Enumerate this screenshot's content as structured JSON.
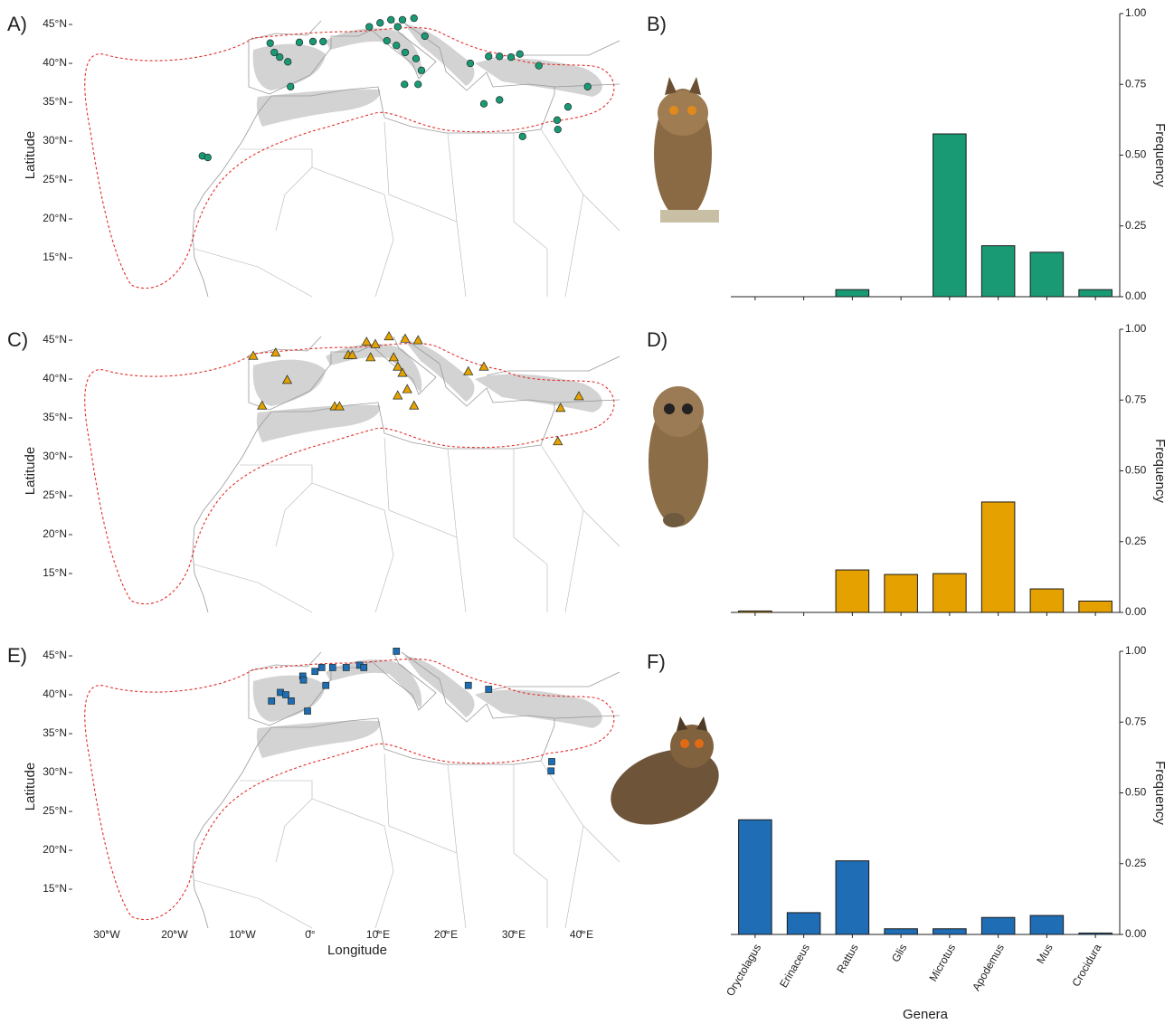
{
  "chart_data": [
    {
      "type": "scatter",
      "panel": "A)",
      "ylabel": "Latitude",
      "marker": "circle",
      "color": "#1a9a74",
      "xlim": [
        -34.4,
        45.6
      ],
      "ylim": [
        10,
        46.4
      ],
      "yticks": [
        {
          "value": 45,
          "label": "45°N"
        },
        {
          "value": 40,
          "label": "40°N"
        },
        {
          "value": 35,
          "label": "35°N"
        },
        {
          "value": 30,
          "label": "30°N"
        },
        {
          "value": 25,
          "label": "25°N"
        },
        {
          "value": 20,
          "label": "20°N"
        },
        {
          "value": 15,
          "label": "15°N"
        }
      ],
      "x": [
        -5.9,
        -4.5,
        -3.3,
        -5.3,
        -2.9,
        0.4,
        1.9,
        -1.6,
        8.7,
        10.3,
        11.9,
        13.6,
        15.3,
        12.9,
        11.3,
        12.7,
        14.0,
        15.6,
        16.4,
        15.9,
        13.9,
        16.9,
        23.6,
        26.3,
        27.9,
        29.6,
        30.9,
        33.7,
        25.6,
        27.9,
        40.9,
        38.0,
        36.4,
        31.3,
        36.5,
        -15.9,
        -15.1
      ],
      "values": [
        42.6,
        40.8,
        40.2,
        41.4,
        37.0,
        42.8,
        42.8,
        42.7,
        44.7,
        45.2,
        45.6,
        45.6,
        45.8,
        44.7,
        42.9,
        42.3,
        41.4,
        40.6,
        39.1,
        37.3,
        37.3,
        43.5,
        40.0,
        40.9,
        40.9,
        40.8,
        41.2,
        39.7,
        34.8,
        35.3,
        37.0,
        34.4,
        32.7,
        30.6,
        31.5,
        28.1,
        27.9
      ]
    },
    {
      "type": "bar",
      "panel": "B)",
      "ylabel": "Frequency",
      "color": "#1a9a74",
      "ylim": [
        0,
        1
      ],
      "yticks": [
        {
          "value": 0,
          "label": "0.00"
        },
        {
          "value": 0.25,
          "label": "0.25"
        },
        {
          "value": 0.5,
          "label": "0.50"
        },
        {
          "value": 0.75,
          "label": "0.75"
        },
        {
          "value": 1,
          "label": "1.00"
        }
      ],
      "values": [
        0,
        0,
        0.025,
        0,
        0.575,
        0.18,
        0.157,
        0.025
      ]
    },
    {
      "type": "scatter",
      "panel": "C)",
      "ylabel": "Latitude",
      "marker": "triangle",
      "color": "#e5a100",
      "xlim": [
        -34.4,
        45.6
      ],
      "ylim": [
        10,
        46.4
      ],
      "yticks": [
        {
          "value": 45,
          "label": "45°N"
        },
        {
          "value": 40,
          "label": "40°N"
        },
        {
          "value": 35,
          "label": "35°N"
        },
        {
          "value": 30,
          "label": "30°N"
        },
        {
          "value": 25,
          "label": "25°N"
        },
        {
          "value": 20,
          "label": "20°N"
        },
        {
          "value": 15,
          "label": "15°N"
        }
      ],
      "x": [
        -8.4,
        -5.1,
        -3.4,
        -7.1,
        5.6,
        6.2,
        8.3,
        9.6,
        11.6,
        14.0,
        15.9,
        12.3,
        12.9,
        13.6,
        14.3,
        15.3,
        12.9,
        8.9,
        3.6,
        4.3,
        23.3,
        25.6,
        39.6,
        36.9,
        36.5
      ],
      "values": [
        43.0,
        43.4,
        39.9,
        36.6,
        43.1,
        43.1,
        44.8,
        44.5,
        45.5,
        45.2,
        45.0,
        42.8,
        41.6,
        40.8,
        38.7,
        36.6,
        37.9,
        42.8,
        36.5,
        36.5,
        41.0,
        41.6,
        37.8,
        36.3,
        32.0
      ]
    },
    {
      "type": "bar",
      "panel": "D)",
      "ylabel": "Frequency",
      "color": "#e5a100",
      "ylim": [
        0,
        1
      ],
      "yticks": [
        {
          "value": 0,
          "label": "0.00"
        },
        {
          "value": 0.25,
          "label": "0.25"
        },
        {
          "value": 0.5,
          "label": "0.50"
        },
        {
          "value": 0.75,
          "label": "0.75"
        },
        {
          "value": 1,
          "label": "1.00"
        }
      ],
      "values": [
        0.005,
        0,
        0.15,
        0.134,
        0.137,
        0.39,
        0.083,
        0.04
      ]
    },
    {
      "type": "scatter",
      "panel": "E)",
      "ylabel": "Latitude",
      "xlabel": "Longitude",
      "marker": "square",
      "color": "#1f6db4",
      "xlim": [
        -34.4,
        45.6
      ],
      "ylim": [
        10,
        46.4
      ],
      "xticks": [
        {
          "value": -30,
          "label": "30°W"
        },
        {
          "value": -20,
          "label": "20°W"
        },
        {
          "value": -10,
          "label": "10°W"
        },
        {
          "value": 0,
          "label": "0°"
        },
        {
          "value": 10,
          "label": "10°E"
        },
        {
          "value": 20,
          "label": "20°E"
        },
        {
          "value": 30,
          "label": "30°E"
        },
        {
          "value": 40,
          "label": "40°E"
        }
      ],
      "yticks": [
        {
          "value": 45,
          "label": "45°N"
        },
        {
          "value": 40,
          "label": "40°N"
        },
        {
          "value": 35,
          "label": "35°N"
        },
        {
          "value": 30,
          "label": "30°N"
        },
        {
          "value": 25,
          "label": "25°N"
        },
        {
          "value": 20,
          "label": "20°N"
        },
        {
          "value": 15,
          "label": "15°N"
        }
      ],
      "x": [
        -1.1,
        -1.0,
        0.7,
        1.7,
        3.3,
        5.3,
        7.3,
        7.9,
        12.7,
        -5.7,
        -4.4,
        -3.6,
        -2.8,
        -0.4,
        2.3,
        23.3,
        26.3,
        35.6,
        35.5
      ],
      "values": [
        42.4,
        41.9,
        43.0,
        43.5,
        43.5,
        43.5,
        43.8,
        43.5,
        45.6,
        39.2,
        40.3,
        40.0,
        39.2,
        37.9,
        41.2,
        41.2,
        40.7,
        31.4,
        30.2
      ]
    },
    {
      "type": "bar",
      "panel": "F)",
      "ylabel": "Frequency",
      "xlabel": "Genera",
      "color": "#1f6db4",
      "ylim": [
        0,
        1
      ],
      "yticks": [
        {
          "value": 0,
          "label": "0.00"
        },
        {
          "value": 0.25,
          "label": "0.25"
        },
        {
          "value": 0.5,
          "label": "0.50"
        },
        {
          "value": 0.75,
          "label": "0.75"
        },
        {
          "value": 1,
          "label": "1.00"
        }
      ],
      "categories": [
        "Oryctolagus",
        "Erinaceus",
        "Rattus",
        "Glis",
        "Microtus",
        "Apodemus",
        "Mus",
        "Crocidura"
      ],
      "values": [
        0.405,
        0.077,
        0.26,
        0.02,
        0.02,
        0.06,
        0.067,
        0.005
      ]
    }
  ]
}
